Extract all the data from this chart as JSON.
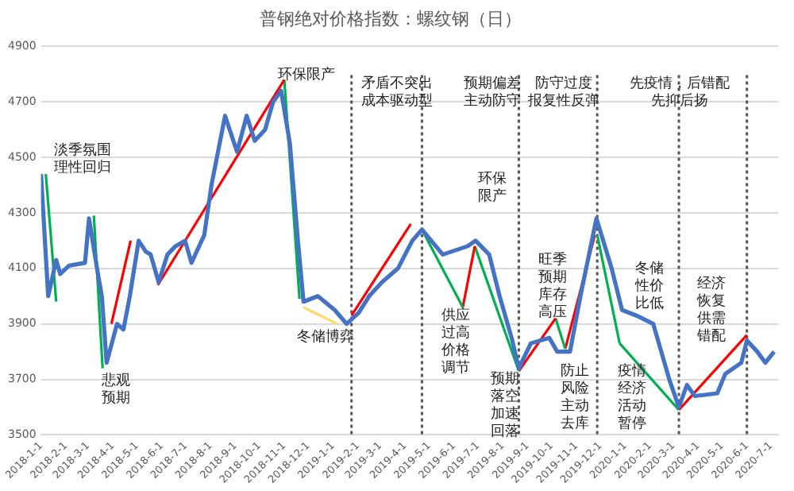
{
  "chart_data": {
    "type": "line",
    "title": "普钢绝对价格指数：螺纹钢（日）",
    "ylim": [
      3500,
      4900
    ],
    "yticks": [
      3500,
      3700,
      3900,
      4100,
      4300,
      4500,
      4700,
      4900
    ],
    "xlim": [
      "2018-01-01",
      "2020-07-10"
    ],
    "xticks": [
      {
        "value": "2018-01-01",
        "label": "2018-1-1"
      },
      {
        "value": "2018-02-01",
        "label": "2018-2-1"
      },
      {
        "value": "2018-03-01",
        "label": "2018-3-1"
      },
      {
        "value": "2018-04-01",
        "label": "2018-4-1"
      },
      {
        "value": "2018-05-01",
        "label": "2018-5-1"
      },
      {
        "value": "2018-06-01",
        "label": "2018-6-1"
      },
      {
        "value": "2018-07-01",
        "label": "2018-7-1"
      },
      {
        "value": "2018-08-01",
        "label": "2018-8-1"
      },
      {
        "value": "2018-09-01",
        "label": "2018-9-1"
      },
      {
        "value": "2018-10-01",
        "label": "2018-10-1"
      },
      {
        "value": "2018-11-01",
        "label": "2018-11-1"
      },
      {
        "value": "2018-12-01",
        "label": "2018-12-1"
      },
      {
        "value": "2019-01-01",
        "label": "2019-1-1"
      },
      {
        "value": "2019-02-01",
        "label": "2019-2-1"
      },
      {
        "value": "2019-03-01",
        "label": "2019-3-1"
      },
      {
        "value": "2019-04-01",
        "label": "2019-4-1"
      },
      {
        "value": "2019-05-01",
        "label": "2019-5-1"
      },
      {
        "value": "2019-06-01",
        "label": "2019-6-1"
      },
      {
        "value": "2019-07-01",
        "label": "2019-7-1"
      },
      {
        "value": "2019-08-01",
        "label": "2019-8-1"
      },
      {
        "value": "2019-09-01",
        "label": "2019-9-1"
      },
      {
        "value": "2019-10-01",
        "label": "2019-10-1"
      },
      {
        "value": "2019-11-01",
        "label": "2019-11-1"
      },
      {
        "value": "2019-12-01",
        "label": "2019-12-1"
      },
      {
        "value": "2020-01-01",
        "label": "2020-1-1"
      },
      {
        "value": "2020-02-01",
        "label": "2020-2-1"
      },
      {
        "value": "2020-03-01",
        "label": "2020-3-1"
      },
      {
        "value": "2020-04-01",
        "label": "2020-4-1"
      },
      {
        "value": "2020-05-01",
        "label": "2020-5-1"
      },
      {
        "value": "2020-06-01",
        "label": "2020-6-1"
      },
      {
        "value": "2020-07-01",
        "label": "2020-7-1"
      }
    ],
    "grid": "y",
    "legend": false,
    "marker": "none",
    "line_style": "solid",
    "series": [
      {
        "color": "#4472c4",
        "x": [
          "2018-01-01",
          "2018-01-10",
          "2018-01-20",
          "2018-01-25",
          "2018-02-05",
          "2018-02-25",
          "2018-03-02",
          "2018-03-12",
          "2018-03-18",
          "2018-03-24",
          "2018-04-06",
          "2018-04-14",
          "2018-04-22",
          "2018-05-03",
          "2018-05-12",
          "2018-05-18",
          "2018-05-28",
          "2018-06-08",
          "2018-06-18",
          "2018-06-30",
          "2018-07-08",
          "2018-07-24",
          "2018-08-02",
          "2018-08-19",
          "2018-09-03",
          "2018-09-15",
          "2018-09-25",
          "2018-10-08",
          "2018-10-18",
          "2018-10-28",
          "2018-11-08",
          "2018-11-18",
          "2018-11-25",
          "2018-12-13",
          "2019-01-03",
          "2019-01-18",
          "2019-02-02",
          "2019-02-15",
          "2019-03-03",
          "2019-03-23",
          "2019-04-10",
          "2019-04-22",
          "2019-05-18",
          "2019-06-18",
          "2019-06-28",
          "2019-07-15",
          "2019-07-28",
          "2019-08-12",
          "2019-08-21",
          "2019-09-05",
          "2019-09-28",
          "2019-10-08",
          "2019-10-24",
          "2019-11-06",
          "2019-11-26",
          "2019-12-15",
          "2019-12-28",
          "2020-01-15",
          "2020-02-05",
          "2020-02-15",
          "2020-02-25",
          "2020-03-08",
          "2020-03-18",
          "2020-03-28",
          "2020-04-25",
          "2020-05-05",
          "2020-05-25",
          "2020-06-01",
          "2020-06-14",
          "2020-06-24",
          "2020-07-05"
        ],
        "values": [
          4440,
          4000,
          4130,
          4080,
          4110,
          4120,
          4280,
          4100,
          4000,
          3760,
          3900,
          3880,
          4000,
          4200,
          4160,
          4150,
          4050,
          4150,
          4180,
          4200,
          4120,
          4220,
          4400,
          4650,
          4520,
          4650,
          4560,
          4600,
          4700,
          4740,
          4550,
          4200,
          3980,
          4000,
          3950,
          3900,
          3940,
          4000,
          4050,
          4100,
          4200,
          4240,
          4150,
          4180,
          4200,
          4150,
          4000,
          3850,
          3740,
          3830,
          3850,
          3800,
          3800,
          4000,
          4280,
          4100,
          3950,
          3930,
          3900,
          3800,
          3700,
          3600,
          3680,
          3640,
          3650,
          3720,
          3760,
          3840,
          3800,
          3760,
          3800
        ]
      },
      {
        "color": "#00b050",
        "x": [
          "2018-01-07",
          "2018-01-20"
        ],
        "values": [
          4440,
          3980
        ]
      },
      {
        "color": "#00b050",
        "x": [
          "2018-03-08",
          "2018-03-19"
        ],
        "values": [
          4290,
          3740
        ]
      },
      {
        "color": "#ff0000",
        "x": [
          "2018-03-30",
          "2018-04-23"
        ],
        "values": [
          3900,
          4200
        ]
      },
      {
        "color": "#ff0000",
        "x": [
          "2018-05-27",
          "2018-11-01"
        ],
        "values": [
          4040,
          4780
        ]
      },
      {
        "color": "#00b050",
        "x": [
          "2018-11-01",
          "2018-11-20"
        ],
        "values": [
          4780,
          3990
        ]
      },
      {
        "color": "#ffd966",
        "x": [
          "2018-11-25",
          "2019-01-06"
        ],
        "values": [
          3960,
          3900
        ]
      },
      {
        "color": "#ff0000",
        "x": [
          "2019-01-24",
          "2019-04-08"
        ],
        "values": [
          3930,
          4260
        ]
      },
      {
        "color": "#00b050",
        "x": [
          "2019-04-22",
          "2019-06-12"
        ],
        "values": [
          4240,
          3960
        ]
      },
      {
        "color": "#ff0000",
        "x": [
          "2019-06-12",
          "2019-06-27"
        ],
        "values": [
          3960,
          4180
        ]
      },
      {
        "color": "#00b050",
        "x": [
          "2019-06-27",
          "2019-08-21"
        ],
        "values": [
          4180,
          3730
        ]
      },
      {
        "color": "#ff0000",
        "x": [
          "2019-08-21",
          "2019-10-06"
        ],
        "values": [
          3730,
          3920
        ]
      },
      {
        "color": "#00b050",
        "x": [
          "2019-10-06",
          "2019-10-18"
        ],
        "values": [
          3920,
          3810
        ]
      },
      {
        "color": "#ff0000",
        "x": [
          "2019-10-18",
          "2019-11-24"
        ],
        "values": [
          3810,
          4220
        ]
      },
      {
        "color": "#00b050",
        "x": [
          "2019-11-27",
          "2019-12-25"
        ],
        "values": [
          4220,
          3830
        ]
      },
      {
        "color": "#00b050",
        "x": [
          "2019-12-25",
          "2020-03-08"
        ],
        "values": [
          3830,
          3590
        ]
      },
      {
        "color": "#ff0000",
        "x": [
          "2020-03-08",
          "2020-06-01"
        ],
        "values": [
          3590,
          3860
        ]
      }
    ],
    "ref_lines": [
      {
        "axis": "x",
        "value": "2019-01-24",
        "color": "#555555",
        "line_style": "dotted"
      },
      {
        "axis": "x",
        "value": "2019-04-22",
        "color": "#555555",
        "line_style": "dotted"
      },
      {
        "axis": "x",
        "value": "2019-08-21",
        "color": "#555555",
        "line_style": "dotted"
      },
      {
        "axis": "x",
        "value": "2019-11-27",
        "color": "#555555",
        "line_style": "dotted"
      },
      {
        "axis": "x",
        "value": "2020-03-08",
        "color": "#555555",
        "line_style": "dotted"
      },
      {
        "axis": "x",
        "value": "2020-06-01",
        "color": "#555555",
        "line_style": "dotted"
      }
    ],
    "annotations": [
      "淡季氛围理性回归",
      "悲观预期",
      "环保限产",
      "矛盾不突出成本驱动型",
      "预期偏差主动防守",
      "防守过度报复性反弹",
      "先疫情，后错配先抑后扬",
      "环保限产",
      "冬储博弈",
      "供应过高价格调节",
      "预期落空加速回落",
      "旺季预期库存高压",
      "防止风险主动去库",
      "冬储性价比低",
      "疫情经济活动暂停",
      "经济恢复供需错配"
    ]
  }
}
